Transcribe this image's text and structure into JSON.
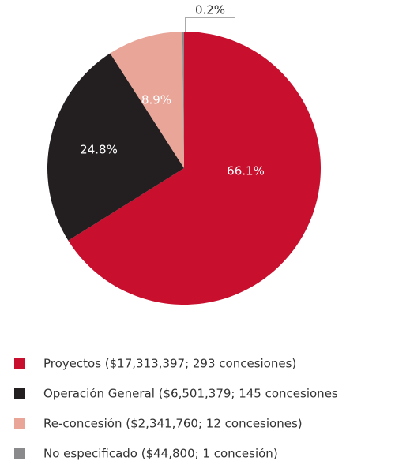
{
  "chart_data": {
    "type": "pie",
    "categories": [
      "Proyectos ($17,313,397; 293 concesiones)",
      "Operación General ($6,501,379; 145 concesiones",
      "Re-concesión ($2,341,760; 12 concesiones)",
      "No especificado ($44,800; 1 concesión)"
    ],
    "values": [
      66.1,
      24.8,
      8.9,
      0.2
    ],
    "value_labels": [
      "66.1%",
      "24.8%",
      "8.9%",
      "0.2%"
    ],
    "colors": [
      "#c8102e",
      "#231f20",
      "#e8a598",
      "#8a8a8d"
    ]
  }
}
